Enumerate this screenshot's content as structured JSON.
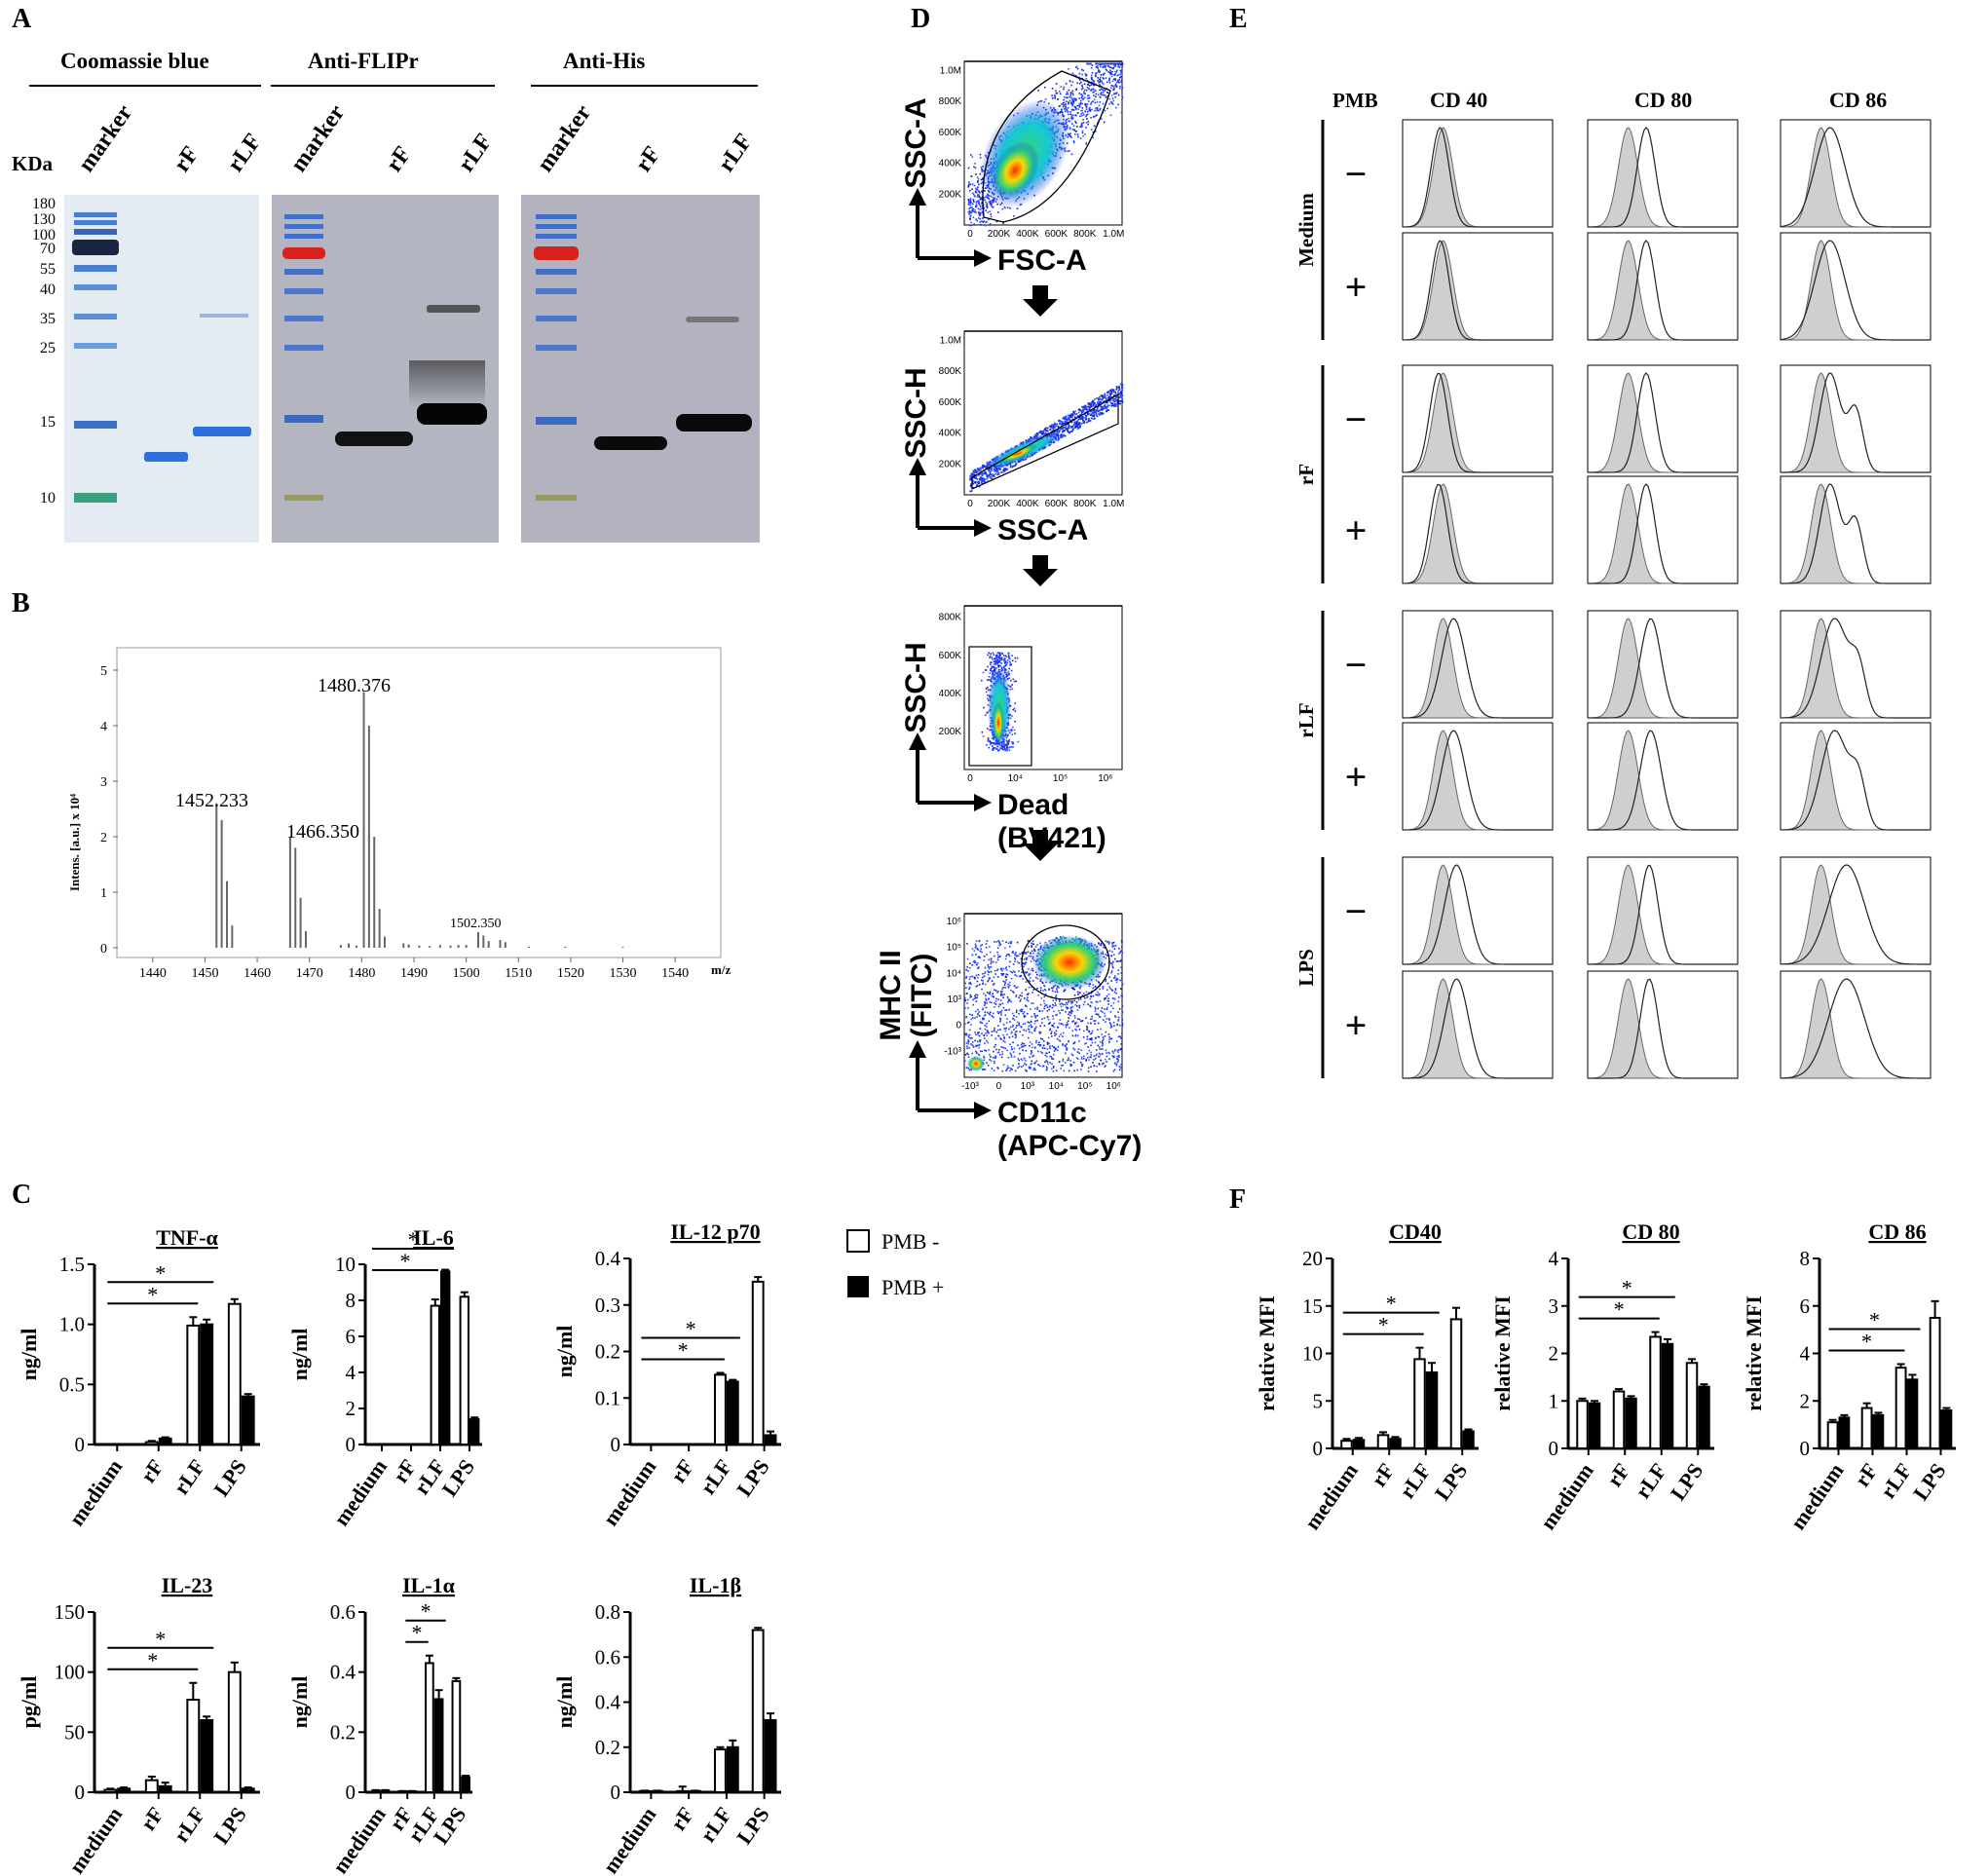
{
  "panel_labels": {
    "a": "A",
    "b": "B",
    "c": "C",
    "d": "D",
    "e": "E",
    "f": "F"
  },
  "gel": {
    "kda_label": "KDa",
    "marker_kda": [
      "180",
      "130",
      "100",
      "70",
      "55",
      "40",
      "35",
      "25",
      "15",
      "10"
    ],
    "panels": [
      {
        "title": "Coomassie blue",
        "lanes": [
          "marker",
          "rF",
          "rLF"
        ]
      },
      {
        "title": "Anti-FLIPr",
        "lanes": [
          "marker",
          "rF",
          "rLF"
        ]
      },
      {
        "title": "Anti-His",
        "lanes": [
          "marker",
          "rF",
          "rLF"
        ]
      }
    ]
  },
  "ms": {
    "ylabel": "Intens. [a.u.] x 10⁴",
    "xlabel": "m/z",
    "yticks": [
      "0",
      "1",
      "2",
      "3",
      "4",
      "5"
    ],
    "xticks": [
      "1440",
      "1450",
      "1460",
      "1470",
      "1480",
      "1490",
      "1500",
      "1510",
      "1520",
      "1530",
      "1540"
    ],
    "peak_labels": [
      "1452.233",
      "1466.350",
      "1480.376",
      "1502.350"
    ]
  },
  "flow": {
    "plots": [
      {
        "ylabel": "SSC-A",
        "xlabel": "FSC-A",
        "yticks": [
          "200K",
          "400K",
          "600K",
          "800K",
          "1.0M"
        ],
        "xticks": [
          "0",
          "200K",
          "400K",
          "600K",
          "800K",
          "1.0M"
        ]
      },
      {
        "ylabel": "SSC-H",
        "xlabel": "SSC-A",
        "yticks": [
          "200K",
          "400K",
          "600K",
          "800K",
          "1.0M"
        ],
        "xticks": [
          "0",
          "200K",
          "400K",
          "600K",
          "800K",
          "1.0M"
        ]
      },
      {
        "ylabel": "SSC-H",
        "xlabel": "Dead",
        "xlabel2": "(BV421)",
        "yticks": [
          "200K",
          "400K",
          "600K",
          "800K"
        ],
        "xticks": [
          "0",
          "10⁴",
          "10⁵",
          "10⁶"
        ]
      },
      {
        "ylabel": "MHC II",
        "ylabel2": "(FITC)",
        "xlabel": "CD11c",
        "xlabel2": "(APC-Cy7)",
        "yticks": [
          "-10³",
          "0",
          "10³",
          "10⁴",
          "10⁵",
          "10⁶"
        ],
        "xticks": [
          "-10³",
          "0",
          "10³",
          "10⁴",
          "10⁵",
          "10⁶"
        ]
      }
    ]
  },
  "histo": {
    "pmb_header": "PMB",
    "columns": [
      "CD 40",
      "CD 80",
      "CD 86"
    ],
    "groups": [
      "Medium",
      "rF",
      "rLF",
      "LPS"
    ],
    "signs": [
      "−",
      "+"
    ]
  },
  "legend": {
    "open": "PMB -",
    "filled": "PMB +"
  },
  "chart_data": [
    {
      "type": "bar",
      "title": "TNF-α",
      "ylabel": "ng/ml",
      "categories": [
        "medium",
        "rF",
        "rLF",
        "LPS"
      ],
      "ylim": [
        0,
        1.5
      ],
      "yticks": [
        "0",
        "0.5",
        "1.0",
        "1.5"
      ],
      "ytick_values": [
        0,
        0.5,
        1.0,
        1.5
      ],
      "series": [
        {
          "name": "PMB -",
          "values": [
            0,
            0.02,
            0.99,
            1.17
          ],
          "errors": [
            0,
            0.01,
            0.07,
            0.04
          ]
        },
        {
          "name": "PMB +",
          "values": [
            0,
            0.05,
            1.0,
            0.4
          ],
          "errors": [
            0,
            0.01,
            0.04,
            0.02
          ]
        }
      ],
      "significance": [
        {
          "label": "*"
        },
        {
          "label": "*"
        }
      ]
    },
    {
      "type": "bar",
      "title": "IL-6",
      "ylabel": "ng/ml",
      "categories": [
        "medium",
        "rF",
        "rLF",
        "LPS"
      ],
      "ylim": [
        0,
        10
      ],
      "yticks": [
        "0",
        "2",
        "4",
        "6",
        "8",
        "10"
      ],
      "ytick_values": [
        0,
        2,
        4,
        6,
        8,
        10
      ],
      "series": [
        {
          "name": "PMB -",
          "values": [
            0,
            0,
            7.7,
            8.2
          ],
          "errors": [
            0,
            0,
            0.35,
            0.25
          ]
        },
        {
          "name": "PMB +",
          "values": [
            0,
            0,
            9.6,
            1.4
          ],
          "errors": [
            0,
            0,
            0.1,
            0.1
          ]
        }
      ],
      "significance": [
        {
          "label": "*"
        },
        {
          "label": "*"
        }
      ]
    },
    {
      "type": "bar",
      "title": "IL-12 p70",
      "ylabel": "ng/ml",
      "categories": [
        "medium",
        "rF",
        "rLF",
        "LPS"
      ],
      "ylim": [
        0,
        0.4
      ],
      "yticks": [
        "0",
        "0.1",
        "0.2",
        "0.3",
        "0.4"
      ],
      "ytick_values": [
        0,
        0.1,
        0.2,
        0.3,
        0.4
      ],
      "series": [
        {
          "name": "PMB -",
          "values": [
            0,
            0,
            0.15,
            0.35
          ],
          "errors": [
            0,
            0,
            0.004,
            0.01
          ]
        },
        {
          "name": "PMB +",
          "values": [
            0,
            0,
            0.135,
            0.02
          ],
          "errors": [
            0,
            0,
            0.004,
            0.008
          ]
        }
      ],
      "significance": [
        {
          "label": "*"
        },
        {
          "label": "*"
        }
      ]
    },
    {
      "type": "bar",
      "title": "IL-23",
      "ylabel": "pg/ml",
      "categories": [
        "medium",
        "rF",
        "rLF",
        "LPS"
      ],
      "ylim": [
        0,
        150
      ],
      "yticks": [
        "0",
        "50",
        "100",
        "150"
      ],
      "ytick_values": [
        0,
        50,
        100,
        150
      ],
      "series": [
        {
          "name": "PMB -",
          "values": [
            2,
            10,
            77,
            100
          ],
          "errors": [
            1,
            3,
            14,
            8
          ]
        },
        {
          "name": "PMB +",
          "values": [
            3,
            5,
            60,
            3
          ],
          "errors": [
            1,
            3,
            3,
            1
          ]
        }
      ],
      "significance": [
        {
          "label": "*"
        },
        {
          "label": "*"
        }
      ]
    },
    {
      "type": "bar",
      "title": "IL-1α",
      "ylabel": "ng/ml",
      "categories": [
        "medium",
        "rF",
        "rLF",
        "LPS"
      ],
      "ylim": [
        0,
        0.6
      ],
      "yticks": [
        "0",
        "0.2",
        "0.4",
        "0.6"
      ],
      "ytick_values": [
        0,
        0.2,
        0.4,
        0.6
      ],
      "series": [
        {
          "name": "PMB -",
          "values": [
            0.005,
            0.003,
            0.43,
            0.37
          ],
          "errors": [
            0.002,
            0.001,
            0.025,
            0.01
          ]
        },
        {
          "name": "PMB +",
          "values": [
            0.005,
            0.003,
            0.31,
            0.05
          ],
          "errors": [
            0.002,
            0.001,
            0.03,
            0.005
          ]
        }
      ],
      "significance": [
        {
          "label": "*"
        },
        {
          "label": "*"
        }
      ]
    },
    {
      "type": "bar",
      "title": "IL-1β",
      "ylabel": "ng/ml",
      "categories": [
        "medium",
        "rF",
        "rLF",
        "LPS"
      ],
      "ylim": [
        0,
        0.8
      ],
      "yticks": [
        "0",
        "0.2",
        "0.4",
        "0.6",
        "0.8"
      ],
      "ytick_values": [
        0,
        0.2,
        0.4,
        0.6,
        0.8
      ],
      "series": [
        {
          "name": "PMB -",
          "values": [
            0.005,
            0.005,
            0.19,
            0.72
          ],
          "errors": [
            0.002,
            0.02,
            0.01,
            0.01
          ]
        },
        {
          "name": "PMB +",
          "values": [
            0.005,
            0.005,
            0.2,
            0.32
          ],
          "errors": [
            0.002,
            0.002,
            0.03,
            0.03
          ]
        }
      ],
      "significance": []
    },
    {
      "type": "bar",
      "title": "CD40",
      "ylabel": "relative MFI",
      "categories": [
        "medium",
        "rF",
        "rLF",
        "LPS"
      ],
      "ylim": [
        0,
        20
      ],
      "yticks": [
        "0",
        "5",
        "10",
        "15",
        "20"
      ],
      "ytick_values": [
        0,
        5,
        10,
        15,
        20
      ],
      "series": [
        {
          "name": "PMB -",
          "values": [
            0.8,
            1.4,
            9.4,
            13.6
          ],
          "errors": [
            0.2,
            0.3,
            1.2,
            1.2
          ]
        },
        {
          "name": "PMB +",
          "values": [
            0.9,
            1.0,
            8.0,
            1.8
          ],
          "errors": [
            0.2,
            0.2,
            1.0,
            0.2
          ]
        }
      ],
      "significance": [
        {
          "label": "*"
        },
        {
          "label": "*"
        }
      ]
    },
    {
      "type": "bar",
      "title": "CD 80",
      "ylabel": "relative MFI",
      "categories": [
        "medium",
        "rF",
        "rLF",
        "LPS"
      ],
      "ylim": [
        0,
        4
      ],
      "yticks": [
        "0",
        "1",
        "2",
        "3",
        "4"
      ],
      "ytick_values": [
        0,
        1,
        2,
        3,
        4
      ],
      "series": [
        {
          "name": "PMB -",
          "values": [
            1.0,
            1.2,
            2.35,
            1.8
          ],
          "errors": [
            0.05,
            0.05,
            0.1,
            0.08
          ]
        },
        {
          "name": "PMB +",
          "values": [
            0.95,
            1.05,
            2.2,
            1.3
          ],
          "errors": [
            0.05,
            0.05,
            0.1,
            0.05
          ]
        }
      ],
      "significance": [
        {
          "label": "*"
        },
        {
          "label": "*"
        }
      ]
    },
    {
      "type": "bar",
      "title": "CD 86",
      "ylabel": "relative MFI",
      "categories": [
        "medium",
        "rF",
        "rLF",
        "LPS"
      ],
      "ylim": [
        0,
        8
      ],
      "yticks": [
        "0",
        "2",
        "4",
        "6",
        "8"
      ],
      "ytick_values": [
        0,
        2,
        4,
        6,
        8
      ],
      "series": [
        {
          "name": "PMB -",
          "values": [
            1.1,
            1.7,
            3.4,
            5.5
          ],
          "errors": [
            0.1,
            0.2,
            0.15,
            0.7
          ]
        },
        {
          "name": "PMB +",
          "values": [
            1.3,
            1.4,
            2.9,
            1.6
          ],
          "errors": [
            0.1,
            0.1,
            0.2,
            0.1
          ]
        }
      ],
      "significance": [
        {
          "label": "*"
        },
        {
          "label": "*"
        }
      ]
    }
  ]
}
